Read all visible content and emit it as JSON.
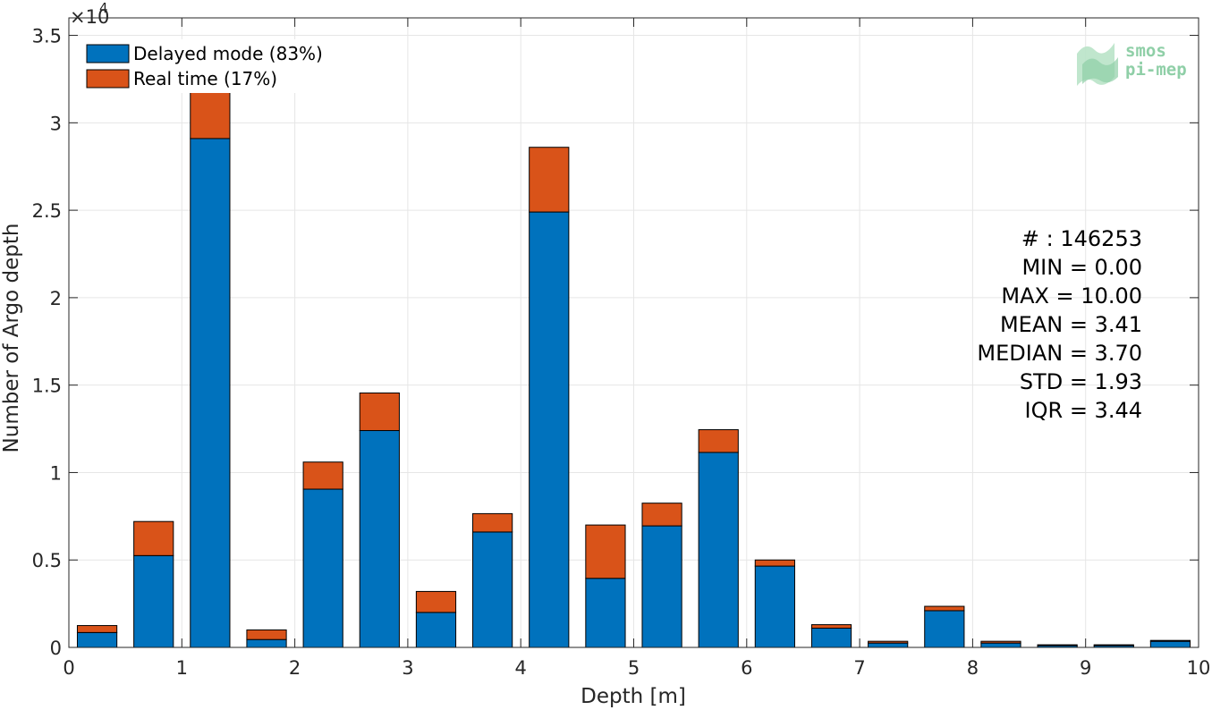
{
  "chart_data": {
    "type": "bar",
    "stacked": true,
    "xlabel": "Depth [m]",
    "ylabel": "Number of Argo depth",
    "xlim": [
      0,
      10
    ],
    "ylim": [
      0,
      36000
    ],
    "y_exponent_label": "×10",
    "y_exponent_power": "4",
    "xticks": [
      "0",
      "1",
      "2",
      "3",
      "4",
      "5",
      "6",
      "7",
      "8",
      "9",
      "10"
    ],
    "yticks": [
      "0",
      "0.5",
      "1",
      "1.5",
      "2",
      "2.5",
      "3",
      "3.5"
    ],
    "grid": true,
    "legend_position": "top-left",
    "bin_centers": [
      0.25,
      0.75,
      1.25,
      1.75,
      2.25,
      2.75,
      3.25,
      3.75,
      4.25,
      4.75,
      5.25,
      5.75,
      6.25,
      6.75,
      7.25,
      7.75,
      8.25,
      8.75,
      9.25,
      9.75
    ],
    "series": [
      {
        "name": "Delayed mode (83%)",
        "color": "#0072bd",
        "values": [
          850,
          5250,
          29100,
          450,
          9050,
          12400,
          2000,
          6600,
          24900,
          3950,
          6950,
          11150,
          4650,
          1100,
          250,
          2100,
          250,
          100,
          100,
          350
        ]
      },
      {
        "name": "Real time (17%)",
        "color": "#d95319",
        "values": [
          400,
          1950,
          5500,
          550,
          1550,
          2150,
          1200,
          1050,
          3700,
          3050,
          1300,
          1300,
          350,
          200,
          100,
          250,
          100,
          50,
          50,
          50
        ]
      }
    ],
    "annotations": {
      "count": "# : 146253",
      "min": "MIN = 0.00",
      "max": "MAX =  10.00",
      "mean": "MEAN = 3.41",
      "median": "MEDIAN = 3.70",
      "std": "STD = 1.93",
      "iqr": "IQR = 3.44"
    }
  },
  "logo": {
    "line1": "smos",
    "line2": "pi-mep"
  }
}
